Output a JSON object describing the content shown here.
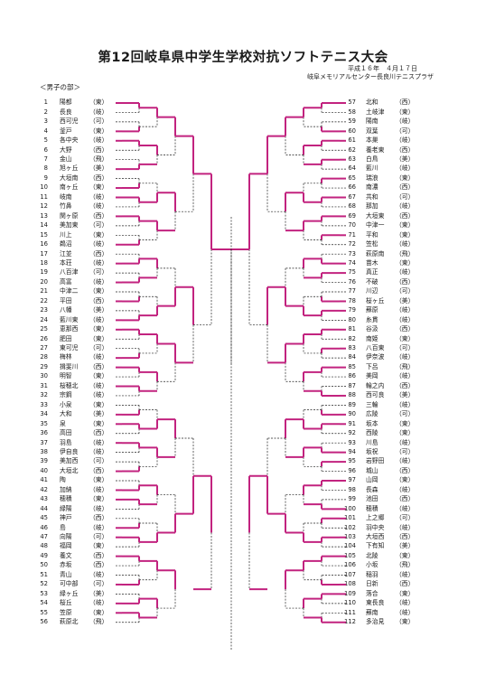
{
  "title": "第12回岐阜県中学生学校対抗ソフトテニス大会",
  "date": "平成１６年　４月１７日",
  "venue": "岐阜メモリアルセンター長良川テニスプラザ",
  "section": "＜男子の部＞",
  "winner_color": "#c2237f",
  "left_teams": [
    {
      "no": "1",
      "name": "陽都",
      "region": "東"
    },
    {
      "no": "2",
      "name": "長良",
      "region": "岐"
    },
    {
      "no": "3",
      "name": "西可児",
      "region": "可"
    },
    {
      "no": "4",
      "name": "釜戸",
      "region": "東"
    },
    {
      "no": "5",
      "name": "各中央",
      "region": "岐"
    },
    {
      "no": "6",
      "name": "大野",
      "region": "西"
    },
    {
      "no": "7",
      "name": "金山",
      "region": "飛"
    },
    {
      "no": "8",
      "name": "旭ヶ丘",
      "region": "美"
    },
    {
      "no": "9",
      "name": "大垣南",
      "region": "西"
    },
    {
      "no": "10",
      "name": "南ヶ丘",
      "region": "東"
    },
    {
      "no": "11",
      "name": "岐南",
      "region": "岐"
    },
    {
      "no": "12",
      "name": "竹鼻",
      "region": "岐"
    },
    {
      "no": "13",
      "name": "関ヶ原",
      "region": "西"
    },
    {
      "no": "14",
      "name": "美加東",
      "region": "可"
    },
    {
      "no": "15",
      "name": "川上",
      "region": "東"
    },
    {
      "no": "16",
      "name": "鵜沼",
      "region": "岐"
    },
    {
      "no": "17",
      "name": "江並",
      "region": "西"
    },
    {
      "no": "18",
      "name": "本荘",
      "region": "岐"
    },
    {
      "no": "19",
      "name": "八百津",
      "region": "可"
    },
    {
      "no": "20",
      "name": "高富",
      "region": "岐"
    },
    {
      "no": "21",
      "name": "中津二",
      "region": "東"
    },
    {
      "no": "22",
      "name": "平田",
      "region": "西"
    },
    {
      "no": "23",
      "name": "八幡",
      "region": "美"
    },
    {
      "no": "24",
      "name": "藍川東",
      "region": "岐"
    },
    {
      "no": "25",
      "name": "恵那西",
      "region": "東"
    },
    {
      "no": "26",
      "name": "肥田",
      "region": "東"
    },
    {
      "no": "27",
      "name": "東可児",
      "region": "可"
    },
    {
      "no": "28",
      "name": "梅林",
      "region": "岐"
    },
    {
      "no": "29",
      "name": "揖斐川",
      "region": "西"
    },
    {
      "no": "30",
      "name": "明智",
      "region": "東"
    },
    {
      "no": "31",
      "name": "桜穂北",
      "region": "岐"
    },
    {
      "no": "32",
      "name": "宗鋼",
      "region": "岐"
    },
    {
      "no": "33",
      "name": "小泉",
      "region": "東"
    },
    {
      "no": "34",
      "name": "大和",
      "region": "美"
    },
    {
      "no": "35",
      "name": "泉",
      "region": "東"
    },
    {
      "no": "36",
      "name": "高田",
      "region": "西"
    },
    {
      "no": "37",
      "name": "羽島",
      "region": "岐"
    },
    {
      "no": "38",
      "name": "伊自良",
      "region": "岐"
    },
    {
      "no": "39",
      "name": "美加西",
      "region": "可"
    },
    {
      "no": "40",
      "name": "大垣北",
      "region": "西"
    },
    {
      "no": "41",
      "name": "陶",
      "region": "東"
    },
    {
      "no": "42",
      "name": "加納",
      "region": "岐"
    },
    {
      "no": "43",
      "name": "穂積",
      "region": "東"
    },
    {
      "no": "44",
      "name": "緑陽",
      "region": "岐"
    },
    {
      "no": "45",
      "name": "神戸",
      "region": "西"
    },
    {
      "no": "46",
      "name": "島",
      "region": "岐"
    },
    {
      "no": "47",
      "name": "向陽",
      "region": "可"
    },
    {
      "no": "48",
      "name": "福岡",
      "region": "東"
    },
    {
      "no": "49",
      "name": "養文",
      "region": "西"
    },
    {
      "no": "50",
      "name": "赤坂",
      "region": "西"
    },
    {
      "no": "51",
      "name": "青山",
      "region": "岐"
    },
    {
      "no": "52",
      "name": "可中部",
      "region": "可"
    },
    {
      "no": "53",
      "name": "緑ヶ丘",
      "region": "美"
    },
    {
      "no": "54",
      "name": "桜丘",
      "region": "岐"
    },
    {
      "no": "55",
      "name": "笠原",
      "region": "東"
    },
    {
      "no": "56",
      "name": "萩原北",
      "region": "飛"
    }
  ],
  "right_teams": [
    {
      "no": "57",
      "name": "北和",
      "region": "西"
    },
    {
      "no": "58",
      "name": "土岐津",
      "region": "東"
    },
    {
      "no": "59",
      "name": "陽南",
      "region": "岐"
    },
    {
      "no": "60",
      "name": "双葉",
      "region": "可"
    },
    {
      "no": "61",
      "name": "本巣",
      "region": "岐"
    },
    {
      "no": "62",
      "name": "養老東",
      "region": "西"
    },
    {
      "no": "63",
      "name": "白鳥",
      "region": "美"
    },
    {
      "no": "64",
      "name": "藍川",
      "region": "岐"
    },
    {
      "no": "65",
      "name": "瑞浪",
      "region": "東"
    },
    {
      "no": "66",
      "name": "南濃",
      "region": "西"
    },
    {
      "no": "67",
      "name": "共和",
      "region": "可"
    },
    {
      "no": "68",
      "name": "那加",
      "region": "岐"
    },
    {
      "no": "69",
      "name": "大垣東",
      "region": "西"
    },
    {
      "no": "70",
      "name": "中津一",
      "region": "東"
    },
    {
      "no": "71",
      "name": "平和",
      "region": "東"
    },
    {
      "no": "72",
      "name": "笠松",
      "region": "岐"
    },
    {
      "no": "73",
      "name": "萩原南",
      "region": "飛"
    },
    {
      "no": "74",
      "name": "苗木",
      "region": "東"
    },
    {
      "no": "75",
      "name": "真正",
      "region": "岐"
    },
    {
      "no": "76",
      "name": "不破",
      "region": "西"
    },
    {
      "no": "77",
      "name": "川辺",
      "region": "可"
    },
    {
      "no": "78",
      "name": "桜ヶ丘",
      "region": "美"
    },
    {
      "no": "79",
      "name": "蘇原",
      "region": "岐"
    },
    {
      "no": "80",
      "name": "糸貫",
      "region": "岐"
    },
    {
      "no": "81",
      "name": "谷汲",
      "region": "西"
    },
    {
      "no": "82",
      "name": "南姫",
      "region": "東"
    },
    {
      "no": "83",
      "name": "八百東",
      "region": "可"
    },
    {
      "no": "84",
      "name": "伊奈波",
      "region": "岐"
    },
    {
      "no": "85",
      "name": "下呂",
      "region": "飛"
    },
    {
      "no": "86",
      "name": "美岡",
      "region": "岐"
    },
    {
      "no": "87",
      "name": "輪之内",
      "region": "西"
    },
    {
      "no": "88",
      "name": "西可良",
      "region": "美"
    },
    {
      "no": "89",
      "name": "三輪",
      "region": "岐"
    },
    {
      "no": "90",
      "name": "広陵",
      "region": "可"
    },
    {
      "no": "91",
      "name": "坂本",
      "region": "東"
    },
    {
      "no": "92",
      "name": "西陵",
      "region": "東"
    },
    {
      "no": "93",
      "name": "川島",
      "region": "岐"
    },
    {
      "no": "94",
      "name": "坂祝",
      "region": "可"
    },
    {
      "no": "95",
      "name": "岩野田",
      "region": "岐"
    },
    {
      "no": "96",
      "name": "城山",
      "region": "西"
    },
    {
      "no": "97",
      "name": "山岡",
      "region": "東"
    },
    {
      "no": "98",
      "name": "長森",
      "region": "岐"
    },
    {
      "no": "99",
      "name": "池田",
      "region": "西"
    },
    {
      "no": "100",
      "name": "穂積",
      "region": "岐"
    },
    {
      "no": "101",
      "name": "上之郷",
      "region": "可"
    },
    {
      "no": "102",
      "name": "羽中央",
      "region": "岐"
    },
    {
      "no": "103",
      "name": "大垣西",
      "region": "西"
    },
    {
      "no": "104",
      "name": "下有知",
      "region": "美"
    },
    {
      "no": "105",
      "name": "北陵",
      "region": "東"
    },
    {
      "no": "106",
      "name": "小坂",
      "region": "飛"
    },
    {
      "no": "107",
      "name": "稲羽",
      "region": "岐"
    },
    {
      "no": "108",
      "name": "日新",
      "region": "西"
    },
    {
      "no": "109",
      "name": "落合",
      "region": "東"
    },
    {
      "no": "110",
      "name": "東長良",
      "region": "岐"
    },
    {
      "no": "111",
      "name": "蘇南",
      "region": "岐"
    },
    {
      "no": "112",
      "name": "多治見",
      "region": "東"
    }
  ],
  "left_winners": [
    0,
    3,
    4,
    7,
    9,
    10,
    12,
    15,
    17,
    19,
    21,
    23,
    24,
    27,
    28,
    30,
    33,
    34,
    36,
    39,
    41,
    42,
    45,
    46,
    48,
    51,
    53,
    54
  ],
  "right_winners": [
    0,
    3,
    4,
    6,
    8,
    10,
    12,
    14,
    17,
    18,
    21,
    22,
    24,
    26,
    28,
    31,
    33,
    34,
    37,
    38,
    40,
    43,
    44,
    46,
    48,
    51,
    52,
    55
  ]
}
